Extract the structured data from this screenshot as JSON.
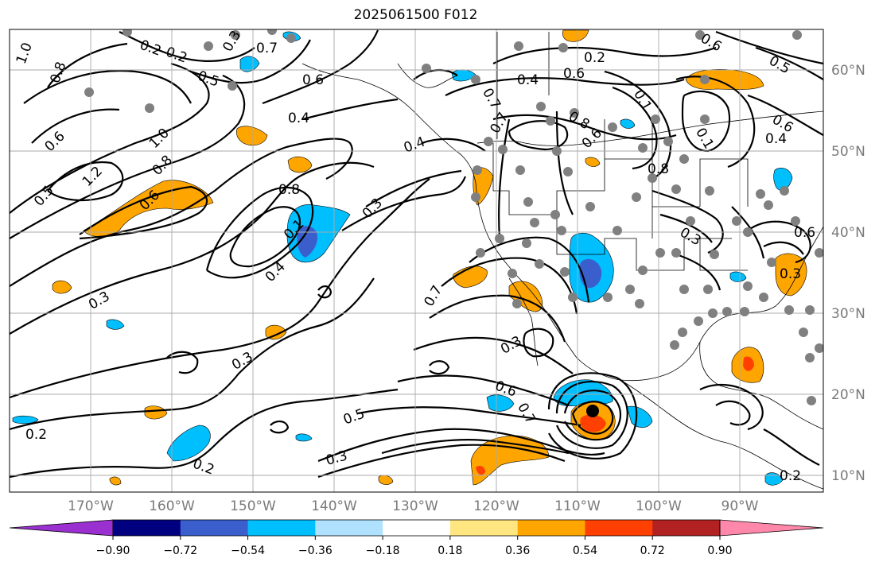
{
  "title": "2025061500 F012",
  "lat_ticks": [
    "60°N",
    "50°N",
    "40°N",
    "30°N",
    "20°N",
    "10°N"
  ],
  "lon_ticks": [
    "170°W",
    "160°W",
    "150°W",
    "140°W",
    "130°W",
    "120°W",
    "110°W",
    "100°W",
    "90°W"
  ],
  "colorbar": {
    "tick_labels": [
      "−0.90",
      "−0.72",
      "−0.54",
      "−0.36",
      "−0.18",
      "0.18",
      "0.36",
      "0.54",
      "0.72",
      "0.90"
    ],
    "colors": [
      "#9b30d0",
      "#000080",
      "#3a5fcd",
      "#00bfff",
      "#b0e2ff",
      "#ffffff",
      "#ffe680",
      "#ffa500",
      "#ff4000",
      "#b22222",
      "#ff88aa"
    ]
  },
  "contour_labels": [
    "1.0",
    "0.8",
    "0.2",
    "0.7",
    "0.3",
    "0.6",
    "0.4",
    "0.2",
    "0.6",
    "0.5",
    "1.0",
    "0.8",
    "0.6",
    "1.2",
    "0.5",
    "0.4",
    "0.8",
    "0.3",
    "0.1",
    "0.4",
    "0.3",
    "0.7",
    "0.3",
    "0.6",
    "0.7",
    "0.5",
    "0.3",
    "0.2",
    "0.2",
    "0.2",
    "0.3",
    "0.4",
    "0.8",
    "0.7",
    "0.6",
    "0.1",
    "0.4",
    "0.6",
    "0.8",
    "0.6",
    "0.3",
    "0.3",
    "0.2",
    "0.6",
    "0.5",
    "0.7",
    "0.6",
    "0.1"
  ]
}
